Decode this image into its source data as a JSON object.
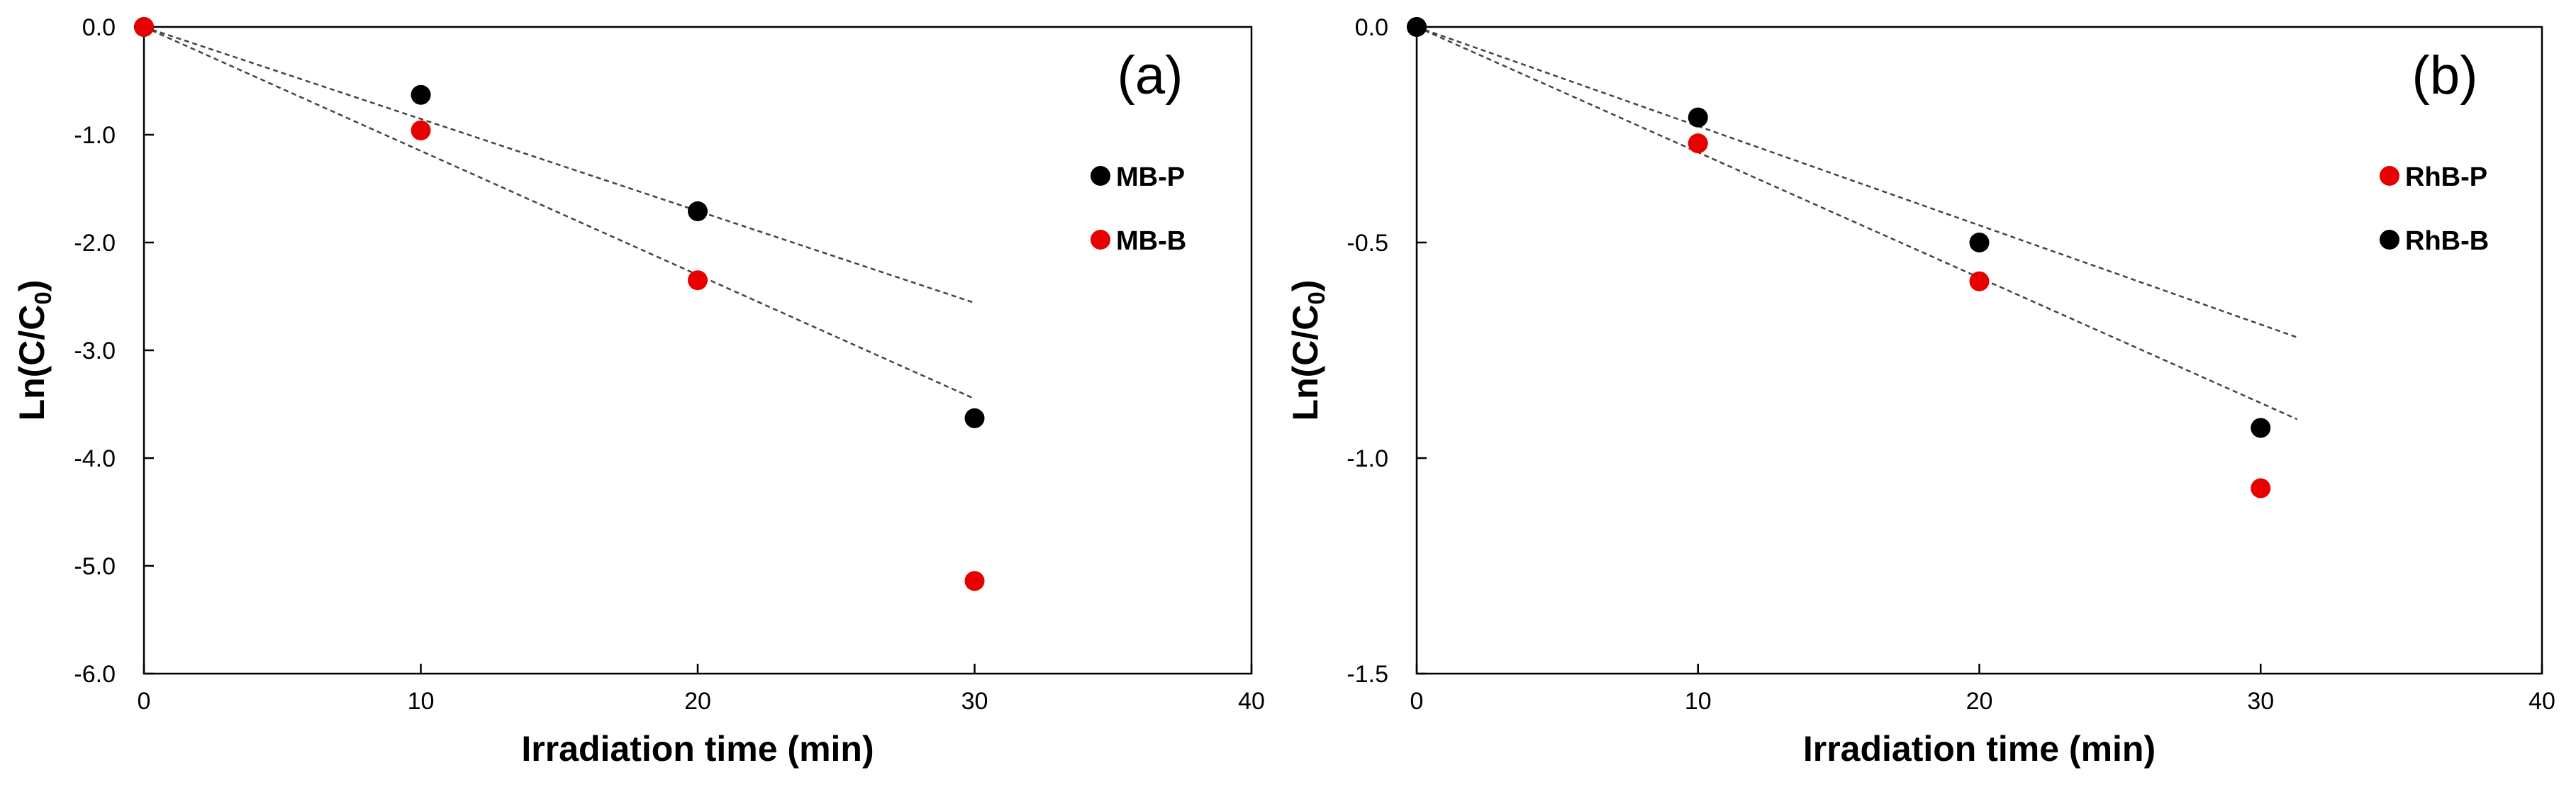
{
  "chart_data": [
    {
      "type": "scatter",
      "panel_label": "(a)",
      "xlabel": "Irradiation time (min)",
      "ylabel": "Ln(C/C",
      "ylabel_sub": "0",
      "ylabel_close": ")",
      "xlim": [
        0,
        40
      ],
      "ylim": [
        -6.0,
        0.0
      ],
      "x_ticks": [
        0,
        10,
        20,
        30,
        40
      ],
      "x_tick_labels": [
        "0",
        "10",
        "20",
        "30",
        "40"
      ],
      "y_ticks": [
        0.0,
        -1.0,
        -2.0,
        -3.0,
        -4.0,
        -5.0,
        -6.0
      ],
      "y_tick_labels": [
        "0.0",
        "-1.0",
        "-2.0",
        "-3.0",
        "-4.0",
        "-5.0",
        "-6.0"
      ],
      "grid": false,
      "legend_position": "top-right",
      "series": [
        {
          "name": "MB-P",
          "color": "#000000",
          "x": [
            0,
            10,
            20,
            30
          ],
          "y": [
            0.0,
            -0.63,
            -1.71,
            -3.63
          ]
        },
        {
          "name": "MB-B",
          "color": "#e60000",
          "x": [
            0,
            10,
            20,
            30
          ],
          "y": [
            0.0,
            -0.96,
            -2.35,
            -5.14
          ]
        }
      ],
      "trendlines": [
        {
          "name": "MB-P fit",
          "x": [
            0,
            30
          ],
          "y": [
            0.0,
            -2.56
          ]
        },
        {
          "name": "MB-B fit",
          "x": [
            0,
            30
          ],
          "y": [
            0.0,
            -3.45
          ]
        }
      ]
    },
    {
      "type": "scatter",
      "panel_label": "(b)",
      "xlabel": "Irradiation time (min)",
      "ylabel": "Ln(C/C",
      "ylabel_sub": "0",
      "ylabel_close": ")",
      "xlim": [
        0,
        40
      ],
      "ylim": [
        -1.5,
        0.0
      ],
      "x_ticks": [
        0,
        10,
        20,
        30,
        40
      ],
      "x_tick_labels": [
        "0",
        "10",
        "20",
        "30",
        "40"
      ],
      "y_ticks": [
        0.0,
        -0.5,
        -1.0,
        -1.5
      ],
      "y_tick_labels": [
        "0.0",
        "-0.5",
        "-1.0",
        "-1.5"
      ],
      "grid": false,
      "legend_position": "top-right",
      "series": [
        {
          "name": "RhB-P",
          "color": "#e60000",
          "x": [
            0,
            10,
            20,
            30
          ],
          "y": [
            0.0,
            -0.27,
            -0.59,
            -1.07
          ]
        },
        {
          "name": "RhB-B",
          "color": "#000000",
          "x": [
            0,
            10,
            20,
            30
          ],
          "y": [
            0.0,
            -0.21,
            -0.5,
            -0.93
          ]
        }
      ],
      "trendlines": [
        {
          "name": "RhB-B fit",
          "x": [
            0,
            31.3
          ],
          "y": [
            0.0,
            -0.72
          ]
        },
        {
          "name": "RhB-P fit",
          "x": [
            0,
            31.3
          ],
          "y": [
            0.0,
            -0.91
          ]
        }
      ]
    }
  ]
}
